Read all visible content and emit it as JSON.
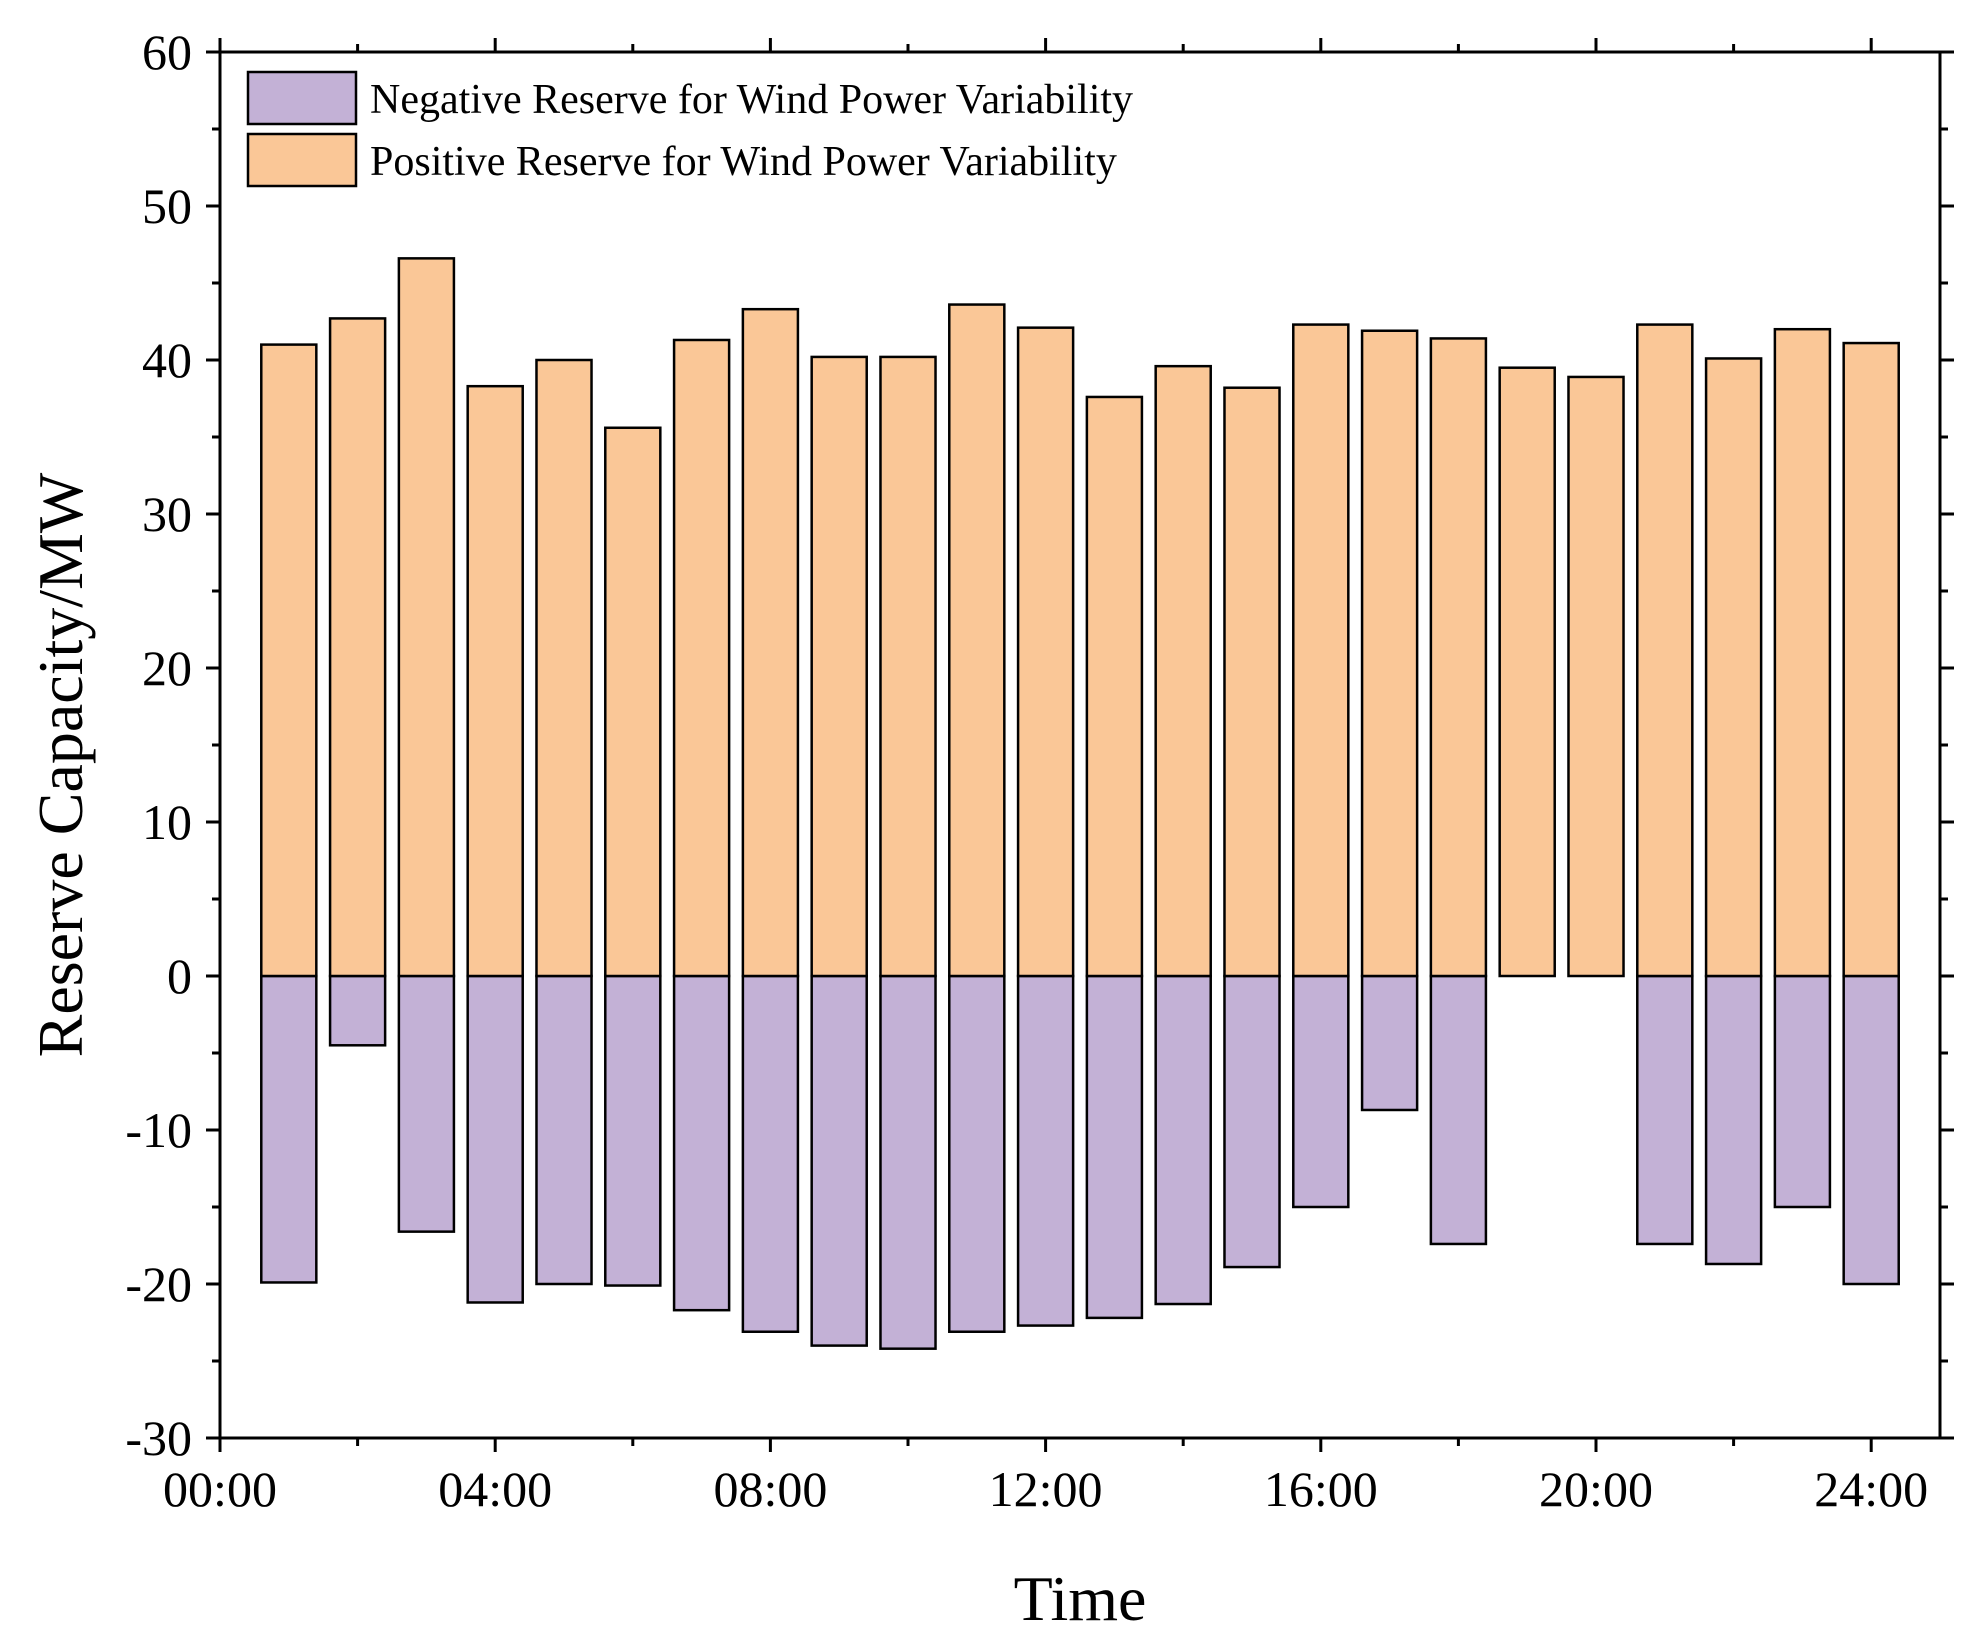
{
  "chart_data": {
    "type": "bar",
    "title": "",
    "xlabel": "Time",
    "ylabel": "Reserve Capacity/MW",
    "ylim": [
      -30,
      60
    ],
    "yticks": [
      -30,
      -20,
      -10,
      0,
      10,
      20,
      30,
      40,
      50,
      60
    ],
    "xlim": [
      0,
      25
    ],
    "xticks": [
      {
        "value": 0,
        "label": "00:00"
      },
      {
        "value": 4,
        "label": "04:00"
      },
      {
        "value": 8,
        "label": "08:00"
      },
      {
        "value": 12,
        "label": "12:00"
      },
      {
        "value": 16,
        "label": "16:00"
      },
      {
        "value": 20,
        "label": "20:00"
      },
      {
        "value": 24,
        "label": "24:00"
      }
    ],
    "hours": [
      1,
      2,
      3,
      4,
      5,
      6,
      7,
      8,
      9,
      10,
      11,
      12,
      13,
      14,
      15,
      16,
      17,
      18,
      19,
      20,
      21,
      22,
      23,
      24
    ],
    "legend_position": "top-left",
    "series": [
      {
        "name": "Negative Reserve for Wind Power Variability",
        "color": "#c3b1d6",
        "values": [
          -19.9,
          -4.5,
          -16.6,
          -21.2,
          -20.0,
          -20.1,
          -21.7,
          -23.1,
          -24.0,
          -24.2,
          -23.1,
          -22.7,
          -22.2,
          -21.3,
          -18.9,
          -15.0,
          -8.7,
          -17.4,
          0,
          0,
          -17.4,
          -18.7,
          -15.0,
          -20.0
        ]
      },
      {
        "name": "Positive Reserve for Wind Power Variability",
        "color": "#fac797",
        "values": [
          41.0,
          42.7,
          46.6,
          38.3,
          40.0,
          35.6,
          41.3,
          43.3,
          40.2,
          40.2,
          43.6,
          42.1,
          37.6,
          39.6,
          38.2,
          42.3,
          41.9,
          41.4,
          39.5,
          38.9,
          42.3,
          40.1,
          42.0,
          41.1
        ]
      }
    ]
  }
}
